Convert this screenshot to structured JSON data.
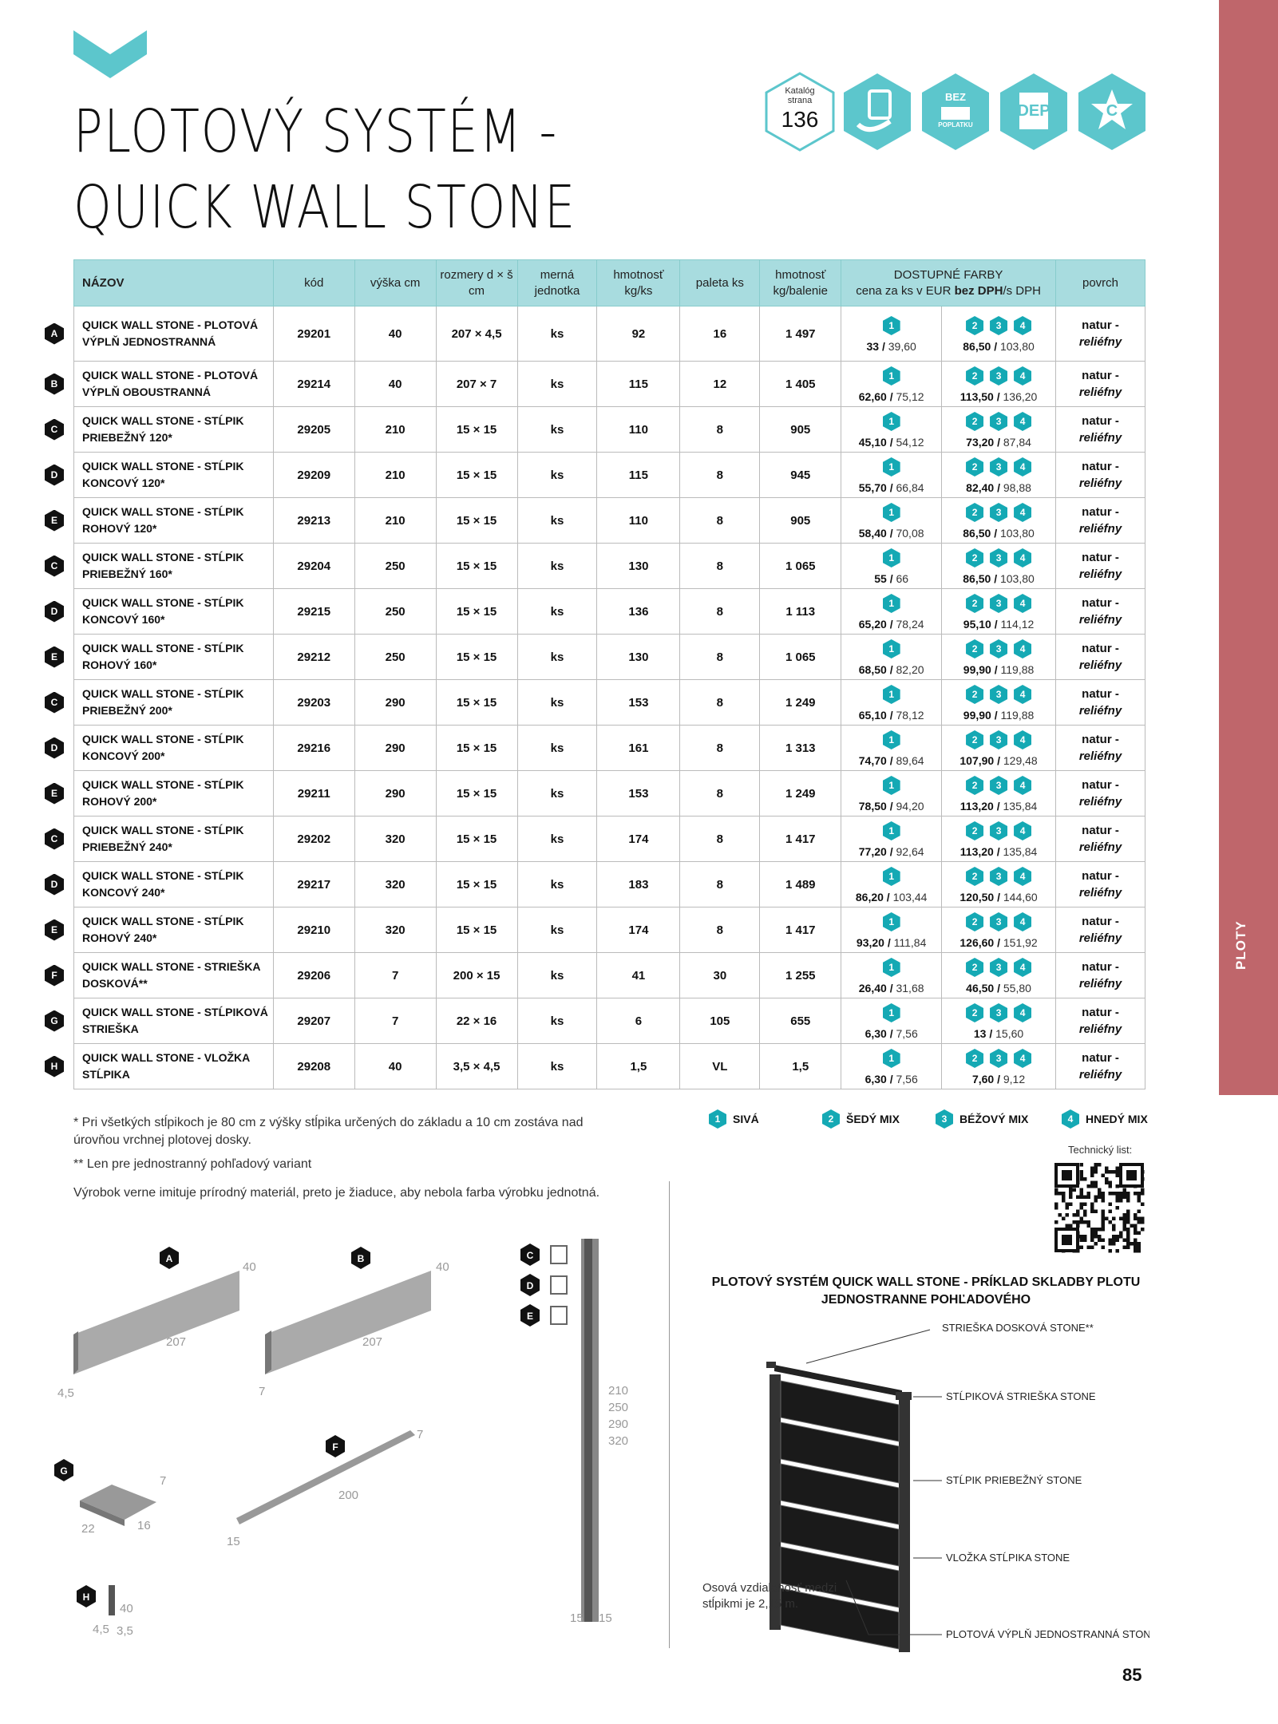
{
  "sidebar_label": "PLOTY",
  "title_lines": [
    "PLOTOVÝ SYSTÉM -",
    "QUICK WALL STONE"
  ],
  "badges": {
    "catalog_label": "Katalóg strana",
    "catalog_page": "136",
    "bez": "BEZ",
    "poplatku": "POPLATKU",
    "dep": "DEP",
    "c": "C"
  },
  "accent": "#15a9b4",
  "header": {
    "name": "NÁZOV",
    "code": "kód",
    "height": "výška cm",
    "dims": "rozmery d × š cm",
    "unit": "merná jednotka",
    "weight": "hmotnosť kg/ks",
    "pallet": "paleta ks",
    "weight_pack": "hmotnosť kg/balenie",
    "colors_title": "DOSTUPNÉ FARBY",
    "colors_sub_a": "cena za ks v EUR ",
    "colors_sub_b": "bez DPH",
    "colors_sub_c": "/s DPH",
    "surface": "povrch"
  },
  "rows": [
    {
      "letter": "A",
      "name": "QUICK WALL STONE - PLOTOVÁ VÝPLŇ JEDNOSTRANNÁ",
      "code": "29201",
      "height": "40",
      "dims": "207 × 4,5",
      "unit": "ks",
      "weight": "92",
      "pallet": "16",
      "weight_pack": "1 497",
      "p1": [
        "33",
        "39,60"
      ],
      "p2": [
        "86,50",
        "103,80"
      ]
    },
    {
      "letter": "B",
      "name": "QUICK WALL STONE - PLOTOVÁ VÝPLŇ OBOUSTRANNÁ",
      "code": "29214",
      "height": "40",
      "dims": "207 × 7",
      "unit": "ks",
      "weight": "115",
      "pallet": "12",
      "weight_pack": "1 405",
      "p1": [
        "62,60",
        "75,12"
      ],
      "p2": [
        "113,50",
        "136,20"
      ]
    },
    {
      "letter": "C",
      "name": "QUICK WALL STONE - STĹPIK PRIEBEŽNÝ 120*",
      "code": "29205",
      "height": "210",
      "dims": "15 × 15",
      "unit": "ks",
      "weight": "110",
      "pallet": "8",
      "weight_pack": "905",
      "p1": [
        "45,10",
        "54,12"
      ],
      "p2": [
        "73,20",
        "87,84"
      ]
    },
    {
      "letter": "D",
      "name": "QUICK WALL STONE - STĹPIK KONCOVÝ 120*",
      "code": "29209",
      "height": "210",
      "dims": "15 × 15",
      "unit": "ks",
      "weight": "115",
      "pallet": "8",
      "weight_pack": "945",
      "p1": [
        "55,70",
        "66,84"
      ],
      "p2": [
        "82,40",
        "98,88"
      ]
    },
    {
      "letter": "E",
      "name": "QUICK WALL STONE - STĹPIK ROHOVÝ 120*",
      "code": "29213",
      "height": "210",
      "dims": "15 × 15",
      "unit": "ks",
      "weight": "110",
      "pallet": "8",
      "weight_pack": "905",
      "p1": [
        "58,40",
        "70,08"
      ],
      "p2": [
        "86,50",
        "103,80"
      ]
    },
    {
      "letter": "C",
      "name": "QUICK WALL STONE - STĹPIK PRIEBEŽNÝ 160*",
      "code": "29204",
      "height": "250",
      "dims": "15 × 15",
      "unit": "ks",
      "weight": "130",
      "pallet": "8",
      "weight_pack": "1 065",
      "p1": [
        "55",
        "66"
      ],
      "p2": [
        "86,50",
        "103,80"
      ]
    },
    {
      "letter": "D",
      "name": "QUICK WALL STONE - STĹPIK KONCOVÝ 160*",
      "code": "29215",
      "height": "250",
      "dims": "15 × 15",
      "unit": "ks",
      "weight": "136",
      "pallet": "8",
      "weight_pack": "1 113",
      "p1": [
        "65,20",
        "78,24"
      ],
      "p2": [
        "95,10",
        "114,12"
      ]
    },
    {
      "letter": "E",
      "name": "QUICK WALL STONE - STĹPIK ROHOVÝ 160*",
      "code": "29212",
      "height": "250",
      "dims": "15 × 15",
      "unit": "ks",
      "weight": "130",
      "pallet": "8",
      "weight_pack": "1 065",
      "p1": [
        "68,50",
        "82,20"
      ],
      "p2": [
        "99,90",
        "119,88"
      ]
    },
    {
      "letter": "C",
      "name": "QUICK WALL STONE - STĹPIK PRIEBEŽNÝ 200*",
      "code": "29203",
      "height": "290",
      "dims": "15 × 15",
      "unit": "ks",
      "weight": "153",
      "pallet": "8",
      "weight_pack": "1 249",
      "p1": [
        "65,10",
        "78,12"
      ],
      "p2": [
        "99,90",
        "119,88"
      ]
    },
    {
      "letter": "D",
      "name": "QUICK WALL STONE - STĹPIK KONCOVÝ 200*",
      "code": "29216",
      "height": "290",
      "dims": "15 × 15",
      "unit": "ks",
      "weight": "161",
      "pallet": "8",
      "weight_pack": "1 313",
      "p1": [
        "74,70",
        "89,64"
      ],
      "p2": [
        "107,90",
        "129,48"
      ]
    },
    {
      "letter": "E",
      "name": "QUICK WALL STONE - STĹPIK ROHOVÝ 200*",
      "code": "29211",
      "height": "290",
      "dims": "15 × 15",
      "unit": "ks",
      "weight": "153",
      "pallet": "8",
      "weight_pack": "1 249",
      "p1": [
        "78,50",
        "94,20"
      ],
      "p2": [
        "113,20",
        "135,84"
      ]
    },
    {
      "letter": "C",
      "name": "QUICK WALL STONE - STĹPIK PRIEBEŽNÝ 240*",
      "code": "29202",
      "height": "320",
      "dims": "15 × 15",
      "unit": "ks",
      "weight": "174",
      "pallet": "8",
      "weight_pack": "1 417",
      "p1": [
        "77,20",
        "92,64"
      ],
      "p2": [
        "113,20",
        "135,84"
      ]
    },
    {
      "letter": "D",
      "name": "QUICK WALL STONE - STĹPIK KONCOVÝ 240*",
      "code": "29217",
      "height": "320",
      "dims": "15 × 15",
      "unit": "ks",
      "weight": "183",
      "pallet": "8",
      "weight_pack": "1 489",
      "p1": [
        "86,20",
        "103,44"
      ],
      "p2": [
        "120,50",
        "144,60"
      ]
    },
    {
      "letter": "E",
      "name": "QUICK WALL STONE - STĹPIK ROHOVÝ 240*",
      "code": "29210",
      "height": "320",
      "dims": "15 × 15",
      "unit": "ks",
      "weight": "174",
      "pallet": "8",
      "weight_pack": "1 417",
      "p1": [
        "93,20",
        "111,84"
      ],
      "p2": [
        "126,60",
        "151,92"
      ]
    },
    {
      "letter": "F",
      "name": "QUICK WALL STONE - STRIEŠKA DOSKOVÁ**",
      "code": "29206",
      "height": "7",
      "dims": "200 × 15",
      "unit": "ks",
      "weight": "41",
      "pallet": "30",
      "weight_pack": "1 255",
      "p1": [
        "26,40",
        "31,68"
      ],
      "p2": [
        "46,50",
        "55,80"
      ]
    },
    {
      "letter": "G",
      "name": "QUICK WALL STONE - STĹPIKOVÁ STRIEŠKA",
      "code": "29207",
      "height": "7",
      "dims": "22 × 16",
      "unit": "ks",
      "weight": "6",
      "pallet": "105",
      "weight_pack": "655",
      "p1": [
        "6,30",
        "7,56"
      ],
      "p2": [
        "13",
        "15,60"
      ]
    },
    {
      "letter": "H",
      "name": "QUICK WALL STONE - VLOŽKA STĹPIKA",
      "code": "29208",
      "height": "40",
      "dims": "3,5 × 4,5",
      "unit": "ks",
      "weight": "1,5",
      "pallet": "VL",
      "weight_pack": "1,5",
      "p1": [
        "6,30",
        "7,56"
      ],
      "p2": [
        "7,60",
        "9,12"
      ]
    }
  ],
  "surface": {
    "a": "natur -",
    "b": "reliéfny"
  },
  "legend": [
    {
      "n": "1",
      "label": "SIVÁ"
    },
    {
      "n": "2",
      "label": "ŠEDÝ MIX"
    },
    {
      "n": "3",
      "label": "BÉŽOVÝ MIX"
    },
    {
      "n": "4",
      "label": "HNEDÝ MIX"
    }
  ],
  "footnotes": [
    "* Pri všetkých stĺpikoch je 80 cm z výšky stĺpika určených do základu a 10 cm zostáva nad úrovňou vrchnej plotovej dosky.",
    "** Len pre jednostranný pohľadový variant",
    "Výrobok verne imituje prírodný materiál, preto je žiaduce, aby nebola farba výrobku jednotná."
  ],
  "tech_sheet": "Technický list:",
  "drawings": {
    "A": "A",
    "B": "B",
    "C": "C",
    "D": "D",
    "E": "E",
    "F": "F",
    "G": "G",
    "H": "H",
    "a_dims": [
      "40",
      "207",
      "4,5"
    ],
    "b_dims": [
      "40",
      "207",
      "7"
    ],
    "post_dims": [
      "210",
      "250",
      "290",
      "320"
    ],
    "post_base": [
      "15",
      "15"
    ],
    "f_dims": [
      "7",
      "200",
      "15"
    ],
    "g_dims": [
      "7",
      "22",
      "16"
    ],
    "h_dims": [
      "40",
      "4,5",
      "3,5"
    ]
  },
  "example": {
    "title": "PLOTOVÝ SYSTÉM QUICK WALL STONE - PRÍKLAD SKLADBY PLOTU JEDNOSTRANNE POHĽADOVÉHO",
    "labels": [
      "STRIEŠKA DOSKOVÁ STONE**",
      "STĹPIKOVÁ STRIEŠKA STONE",
      "STĹPIK PRIEBEŽNÝ STONE",
      "VLOŽKA STĹPIKA STONE",
      "PLOTOVÁ VÝPLŇ JEDNOSTRANNÁ STONE"
    ],
    "note": "Osová vzdialenosť medzi stĺpikmi je 2,15 m."
  },
  "page_number": "85"
}
